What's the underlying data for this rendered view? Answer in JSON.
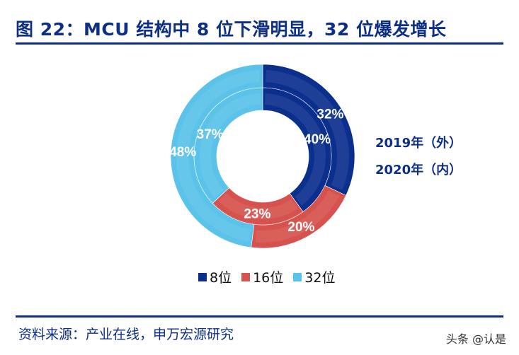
{
  "title": "图 22：MCU 结构中 8 位下滑明显，32 位爆发增长",
  "source": "资料来源：产业在线，申万宏源研究",
  "watermark": "头条 @认是",
  "chart_data": {
    "type": "pie",
    "style": "double-donut",
    "categories": [
      "8位",
      "16位",
      "32位"
    ],
    "colors": [
      "#0b2f8d",
      "#d6524e",
      "#5bc3ea"
    ],
    "series": [
      {
        "name": "2019年（外）",
        "ring": "outer",
        "values": [
          32,
          20,
          48
        ],
        "labels": [
          "32%",
          "20%",
          "48%"
        ]
      },
      {
        "name": "2020年（内）",
        "ring": "inner",
        "values": [
          40,
          23,
          37
        ],
        "labels": [
          "40%",
          "23%",
          "37%"
        ]
      }
    ],
    "legend": {
      "placement": "bottom",
      "entries": [
        "8位",
        "16位",
        "32位"
      ]
    }
  }
}
